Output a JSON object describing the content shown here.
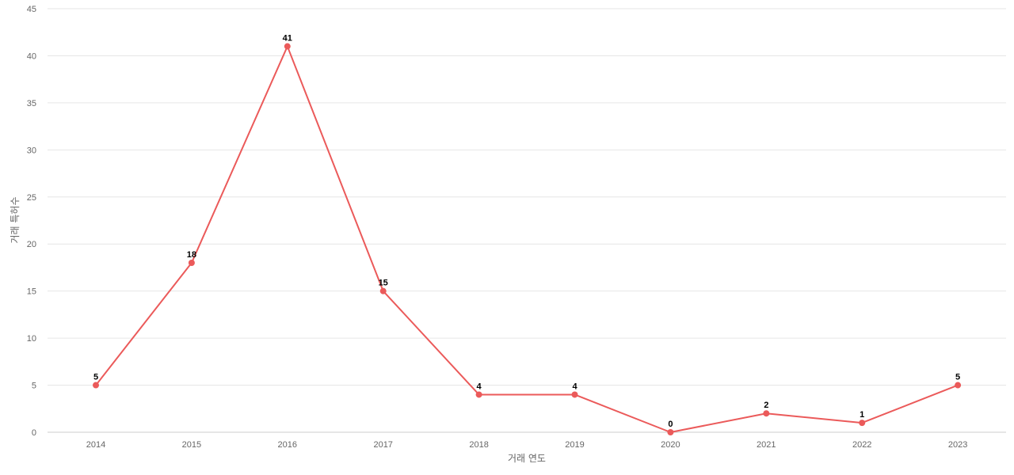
{
  "chart_data": {
    "type": "line",
    "title": "",
    "xlabel": "거래 연도",
    "ylabel": "거래 특허수",
    "categories": [
      "2014",
      "2015",
      "2016",
      "2017",
      "2018",
      "2019",
      "2020",
      "2021",
      "2022",
      "2023"
    ],
    "series": [
      {
        "values": [
          5,
          18,
          41,
          15,
          4,
          4,
          0,
          2,
          1,
          5
        ],
        "color": "#eb5a5a"
      }
    ],
    "ylim": [
      0,
      45
    ],
    "yticks": [
      "0",
      "5",
      "10",
      "15",
      "20",
      "25",
      "30",
      "35",
      "40",
      "45"
    ],
    "data_labels": true,
    "grid": true,
    "legend": "none"
  }
}
